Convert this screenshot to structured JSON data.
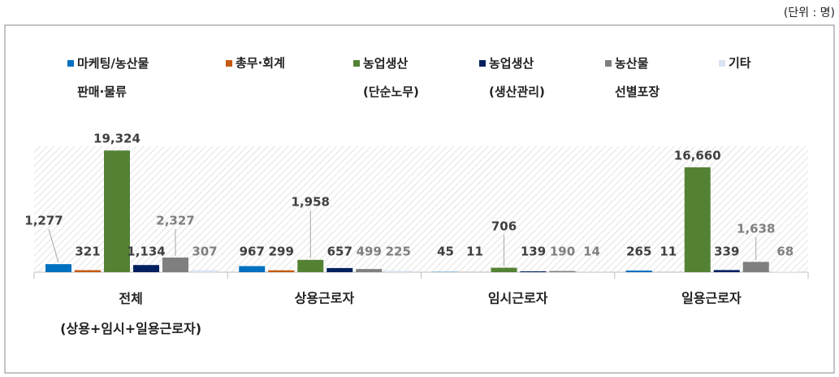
{
  "chart_data": {
    "type": "bar",
    "unit": "(단위 : 명)",
    "categories": [
      "전체\n(상용+임시+일용근로자)",
      "상용근로자",
      "임시근로자",
      "일용근로자"
    ],
    "series": [
      {
        "name": "마케팅/농산물\n판매·물류",
        "color": "#0070c0",
        "values": [
          1277,
          967,
          45,
          265
        ],
        "value_labels": [
          "1,277",
          "967",
          "45",
          "265"
        ]
      },
      {
        "name": "총무·회계",
        "color": "#c55a11",
        "values": [
          321,
          299,
          11,
          11
        ]
      },
      {
        "name": "농업생산\n(단순노무)",
        "color": "#548235",
        "values": [
          19324,
          1958,
          706,
          16660
        ],
        "value_labels": [
          "19,324",
          "1,958",
          "706",
          "16,660"
        ]
      },
      {
        "name": "농업생산\n(생산관리)",
        "color": "#002060",
        "values": [
          1134,
          657,
          139,
          339
        ],
        "value_labels": [
          "1,134",
          "657",
          "139",
          "339"
        ]
      },
      {
        "name": "농산물\n선별포장",
        "color": "#7f7f7f",
        "values": [
          2327,
          499,
          190,
          1638
        ],
        "value_labels": [
          "2,327",
          "499",
          "190",
          "1,638"
        ]
      },
      {
        "name": "기타",
        "color": "#dae3f3",
        "values": [
          307,
          225,
          14,
          68
        ]
      }
    ],
    "ylim": [
      0,
      20000
    ]
  }
}
